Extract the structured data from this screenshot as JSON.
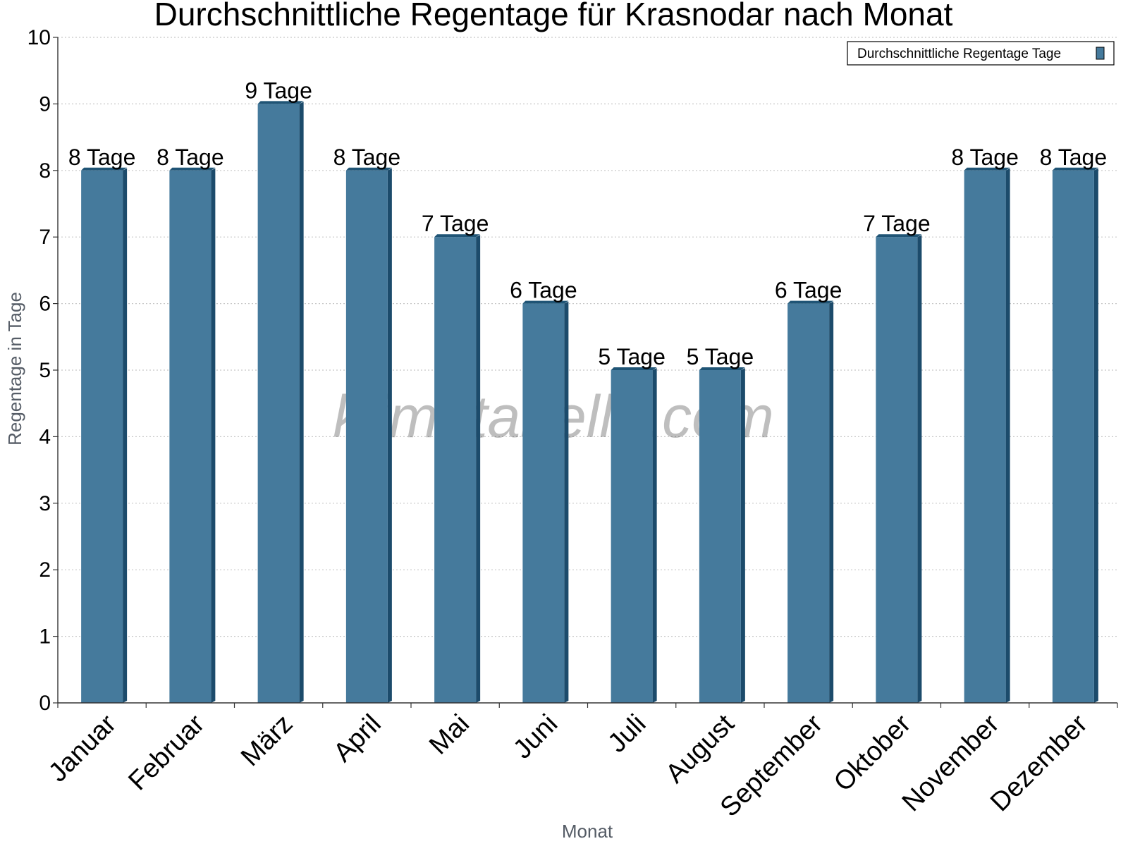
{
  "watermark": "klimatabelle.com",
  "colors": {
    "bar_front": "#457a9c",
    "bar_side": "#1c4b6b",
    "bar_top": "#1f5475",
    "grid": "#c8c8c8",
    "axis": "#333333"
  },
  "chart_data": {
    "type": "bar",
    "title": "Durchschnittliche Regentage für Krasnodar nach Monat",
    "xlabel": "Monat",
    "ylabel": "Regentage in Tage",
    "categories": [
      "Januar",
      "Februar",
      "März",
      "April",
      "Mai",
      "Juni",
      "Juli",
      "August",
      "September",
      "Oktober",
      "November",
      "Dezember"
    ],
    "series": [
      {
        "name": "Durchschnittliche Regentage Tage",
        "values": [
          8,
          8,
          9,
          8,
          7,
          6,
          5,
          5,
          6,
          7,
          8,
          8
        ],
        "labels": [
          "8 Tage",
          "8 Tage",
          "9 Tage",
          "8 Tage",
          "7 Tage",
          "6 Tage",
          "5 Tage",
          "5 Tage",
          "6 Tage",
          "7 Tage",
          "8 Tage",
          "8 Tage"
        ]
      }
    ],
    "ylim": [
      0,
      10
    ],
    "yticks": [
      "0",
      "1",
      "2",
      "3",
      "4",
      "5",
      "6",
      "7",
      "8",
      "9",
      "10"
    ],
    "grid": true,
    "legend_position": "top-right"
  }
}
